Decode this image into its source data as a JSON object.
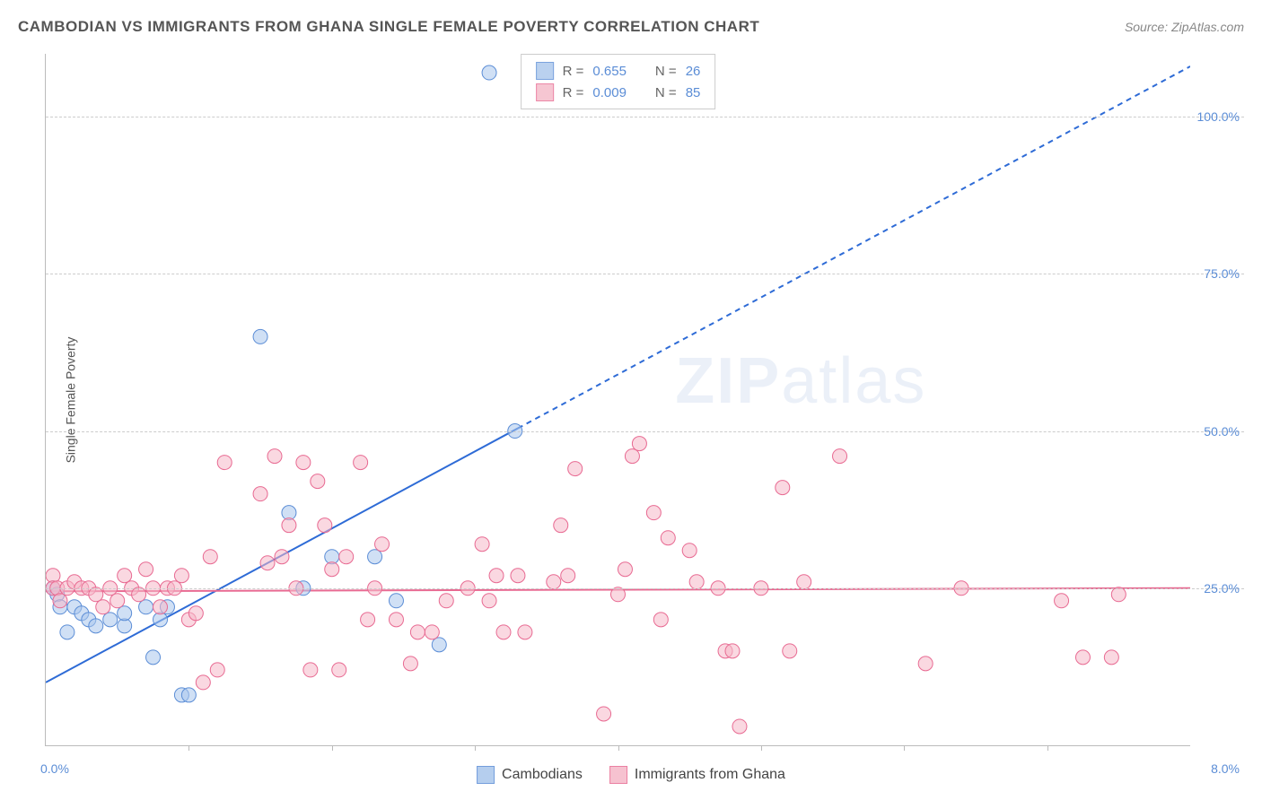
{
  "header": {
    "title": "CAMBODIAN VS IMMIGRANTS FROM GHANA SINGLE FEMALE POVERTY CORRELATION CHART",
    "source_prefix": "Source: ",
    "source_name": "ZipAtlas.com"
  },
  "chart": {
    "type": "scatter",
    "y_label": "Single Female Poverty",
    "watermark_bold": "ZIP",
    "watermark_light": "atlas",
    "xlim": [
      0.0,
      8.0
    ],
    "ylim": [
      0.0,
      110.0
    ],
    "x_min_label": "0.0%",
    "x_max_label": "8.0%",
    "x_ticks": [
      1,
      2,
      3,
      4,
      5,
      6,
      7
    ],
    "y_gridlines": [
      25.0,
      50.0,
      75.0,
      100.0
    ],
    "y_tick_labels": [
      "25.0%",
      "50.0%",
      "75.0%",
      "100.0%"
    ],
    "grid_color": "#cccccc",
    "axis_color": "#bbbbbb",
    "tick_label_color": "#5b8dd6",
    "background_color": "#ffffff",
    "series": [
      {
        "id": "cambodians",
        "label": "Cambodians",
        "marker_fill": "#a9c6ec",
        "marker_stroke": "#5b8dd6",
        "marker_fill_opacity": 0.55,
        "marker_radius": 8,
        "R_label": "R = ",
        "R": "0.655",
        "N_label": "N = ",
        "N": "26",
        "trend": {
          "x1": 0.0,
          "y1": 10.0,
          "x2": 8.0,
          "y2": 108.0,
          "solid_until_x": 3.3,
          "color": "#2e6bd6",
          "width": 2
        },
        "points": [
          [
            0.05,
            25
          ],
          [
            0.08,
            24
          ],
          [
            0.1,
            22
          ],
          [
            0.15,
            18
          ],
          [
            0.2,
            22
          ],
          [
            0.25,
            21
          ],
          [
            0.3,
            20
          ],
          [
            0.35,
            19
          ],
          [
            0.45,
            20
          ],
          [
            0.55,
            19
          ],
          [
            0.55,
            21
          ],
          [
            0.7,
            22
          ],
          [
            0.75,
            14
          ],
          [
            0.8,
            20
          ],
          [
            0.85,
            22
          ],
          [
            0.95,
            8
          ],
          [
            1.0,
            8
          ],
          [
            1.5,
            65
          ],
          [
            1.7,
            37
          ],
          [
            1.8,
            25
          ],
          [
            2.0,
            30
          ],
          [
            2.3,
            30
          ],
          [
            2.45,
            23
          ],
          [
            2.75,
            16
          ],
          [
            3.1,
            107
          ],
          [
            3.28,
            50
          ]
        ]
      },
      {
        "id": "ghana",
        "label": "Immigrants from Ghana",
        "marker_fill": "#f5b8c8",
        "marker_stroke": "#e86a92",
        "marker_fill_opacity": 0.55,
        "marker_radius": 8,
        "R_label": "R = ",
        "R": "0.009",
        "N_label": "N = ",
        "N": "85",
        "trend": {
          "x1": 0.0,
          "y1": 24.5,
          "x2": 8.0,
          "y2": 25.0,
          "solid_until_x": 8.0,
          "color": "#e86a92",
          "width": 2
        },
        "points": [
          [
            0.05,
            27
          ],
          [
            0.05,
            25
          ],
          [
            0.08,
            25
          ],
          [
            0.1,
            23
          ],
          [
            0.15,
            25
          ],
          [
            0.2,
            26
          ],
          [
            0.25,
            25
          ],
          [
            0.3,
            25
          ],
          [
            0.35,
            24
          ],
          [
            0.4,
            22
          ],
          [
            0.45,
            25
          ],
          [
            0.5,
            23
          ],
          [
            0.55,
            27
          ],
          [
            0.6,
            25
          ],
          [
            0.65,
            24
          ],
          [
            0.7,
            28
          ],
          [
            0.75,
            25
          ],
          [
            0.8,
            22
          ],
          [
            0.85,
            25
          ],
          [
            0.9,
            25
          ],
          [
            0.95,
            27
          ],
          [
            1.0,
            20
          ],
          [
            1.05,
            21
          ],
          [
            1.1,
            10
          ],
          [
            1.15,
            30
          ],
          [
            1.2,
            12
          ],
          [
            1.25,
            45
          ],
          [
            1.5,
            40
          ],
          [
            1.55,
            29
          ],
          [
            1.6,
            46
          ],
          [
            1.65,
            30
          ],
          [
            1.7,
            35
          ],
          [
            1.75,
            25
          ],
          [
            1.8,
            45
          ],
          [
            1.85,
            12
          ],
          [
            1.9,
            42
          ],
          [
            1.95,
            35
          ],
          [
            2.0,
            28
          ],
          [
            2.05,
            12
          ],
          [
            2.1,
            30
          ],
          [
            2.2,
            45
          ],
          [
            2.25,
            20
          ],
          [
            2.3,
            25
          ],
          [
            2.35,
            32
          ],
          [
            2.45,
            20
          ],
          [
            2.55,
            13
          ],
          [
            2.6,
            18
          ],
          [
            2.7,
            18
          ],
          [
            2.8,
            23
          ],
          [
            2.95,
            25
          ],
          [
            3.05,
            32
          ],
          [
            3.1,
            23
          ],
          [
            3.15,
            27
          ],
          [
            3.2,
            18
          ],
          [
            3.3,
            27
          ],
          [
            3.35,
            18
          ],
          [
            3.55,
            26
          ],
          [
            3.6,
            35
          ],
          [
            3.65,
            27
          ],
          [
            3.7,
            44
          ],
          [
            3.9,
            5
          ],
          [
            4.0,
            24
          ],
          [
            4.05,
            28
          ],
          [
            4.1,
            46
          ],
          [
            4.15,
            48
          ],
          [
            4.25,
            37
          ],
          [
            4.3,
            20
          ],
          [
            4.35,
            33
          ],
          [
            4.5,
            31
          ],
          [
            4.55,
            26
          ],
          [
            4.7,
            25
          ],
          [
            4.75,
            15
          ],
          [
            4.8,
            15
          ],
          [
            4.85,
            3
          ],
          [
            5.0,
            25
          ],
          [
            5.15,
            41
          ],
          [
            5.2,
            15
          ],
          [
            5.3,
            26
          ],
          [
            5.55,
            46
          ],
          [
            6.15,
            13
          ],
          [
            6.4,
            25
          ],
          [
            7.1,
            23
          ],
          [
            7.25,
            14
          ],
          [
            7.45,
            14
          ],
          [
            7.5,
            24
          ]
        ]
      }
    ]
  },
  "legend_top": {
    "text_color_label": "#666666",
    "text_color_value": "#5b8dd6"
  }
}
